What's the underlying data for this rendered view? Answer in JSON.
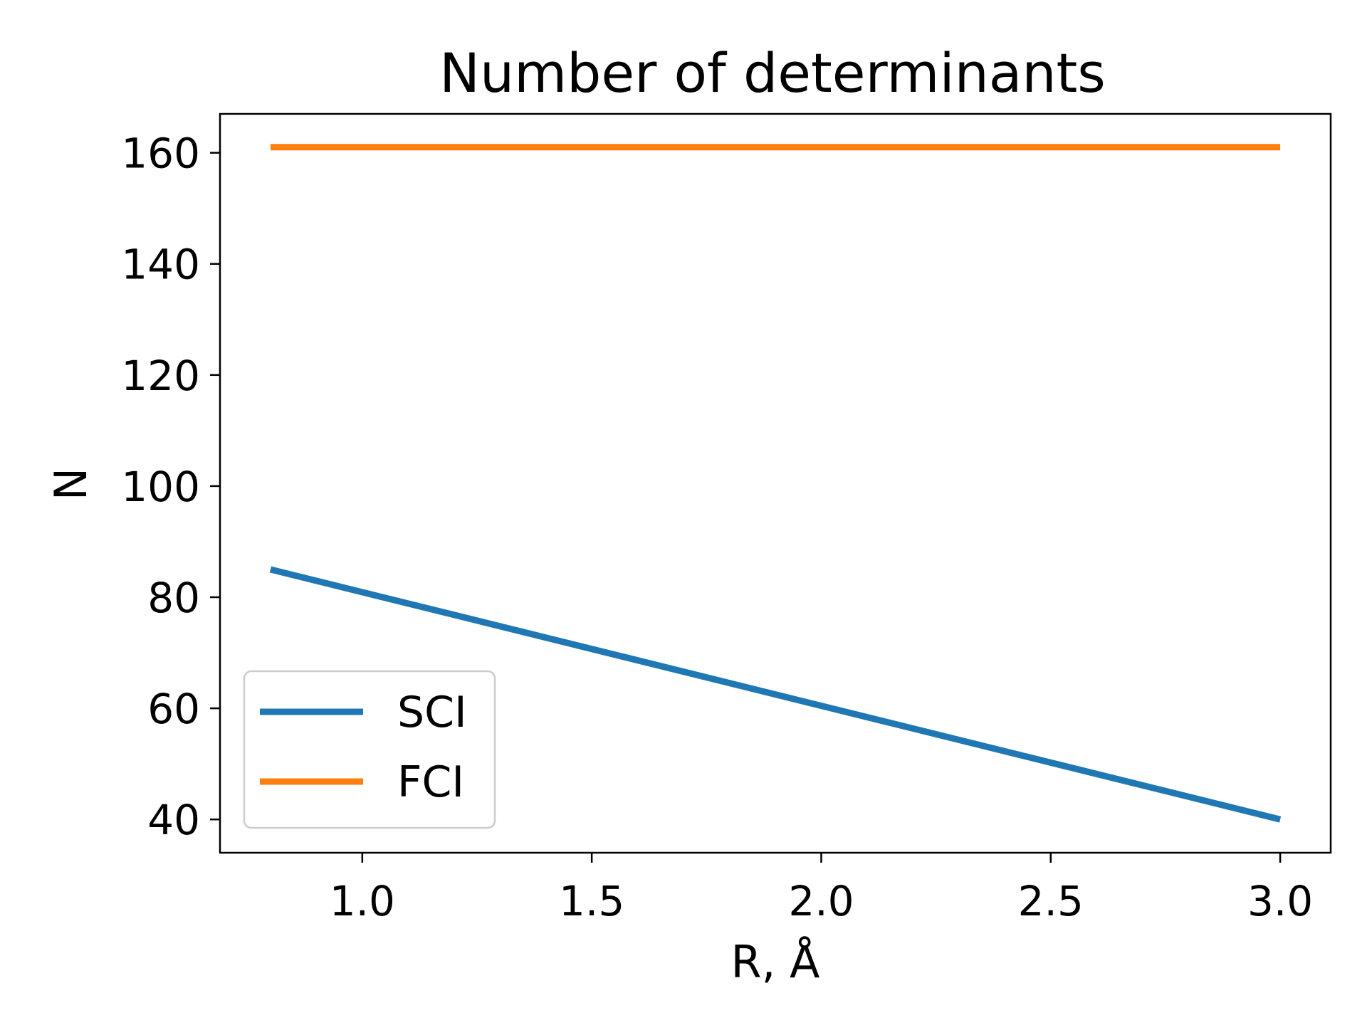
{
  "chart_data": {
    "type": "line",
    "title": "Number of determinants",
    "xlabel": "R, Å",
    "ylabel": "N",
    "xlim": [
      0.69,
      3.11
    ],
    "ylim": [
      34,
      167
    ],
    "xticks": [
      1.0,
      1.5,
      2.0,
      2.5,
      3.0
    ],
    "xtick_labels": [
      "1.0",
      "1.5",
      "2.0",
      "2.5",
      "3.0"
    ],
    "yticks": [
      40,
      60,
      80,
      100,
      120,
      140,
      160
    ],
    "ytick_labels": [
      "40",
      "60",
      "80",
      "100",
      "120",
      "140",
      "160"
    ],
    "grid": false,
    "legend_position": "lower-left",
    "series": [
      {
        "name": "SCI",
        "color": "#1f77b4",
        "x": [
          0.8,
          3.0
        ],
        "y": [
          85,
          40
        ]
      },
      {
        "name": "FCI",
        "color": "#ff7f0e",
        "x": [
          0.8,
          3.0
        ],
        "y": [
          161,
          161
        ]
      }
    ]
  }
}
